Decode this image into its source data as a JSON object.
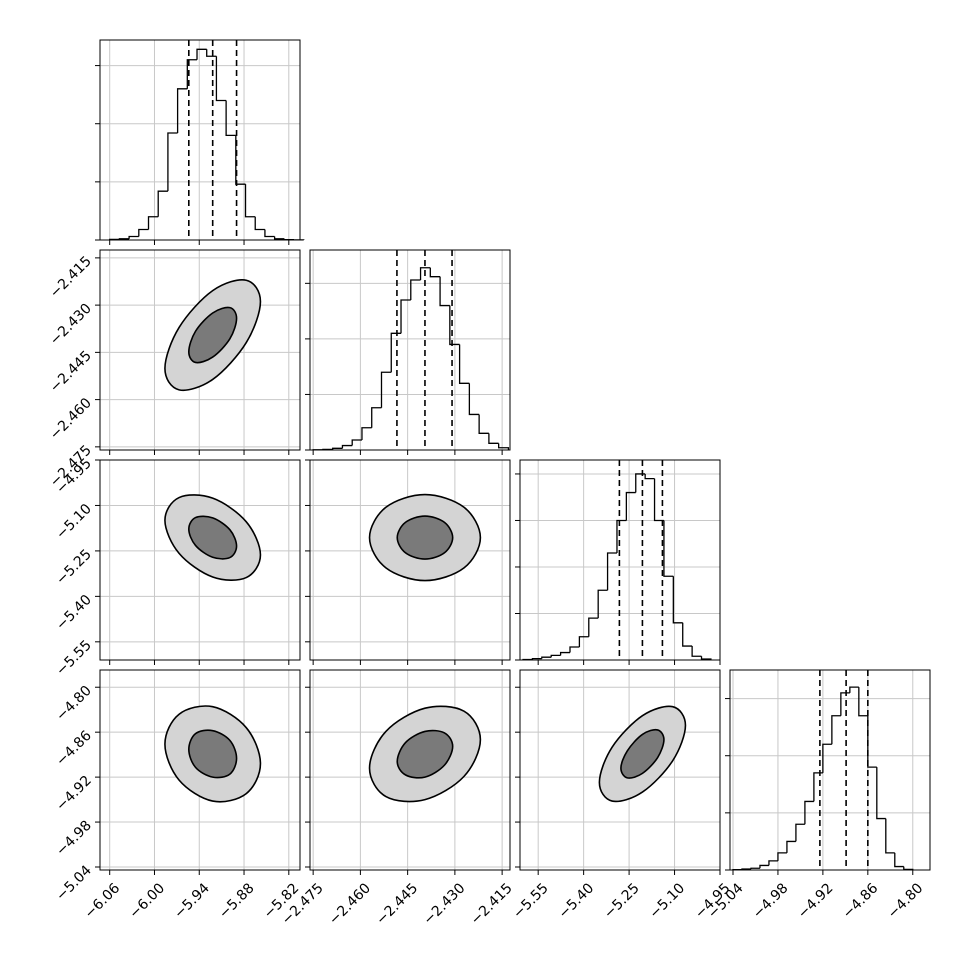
{
  "chart_data": {
    "type": "corner",
    "grid": true,
    "color": "#000000",
    "contour_fills": [
      "#d4d4d4",
      "#7a7a7a"
    ],
    "params": [
      {
        "lim": [
          -6.073,
          -5.805
        ],
        "ticks": [
          {
            "value": -6.06,
            "label": "−6.06"
          },
          {
            "value": -6.0,
            "label": "−6.00"
          },
          {
            "value": -5.94,
            "label": "−5.94"
          },
          {
            "value": -5.88,
            "label": "−5.88"
          },
          {
            "value": -5.82,
            "label": "−5.82"
          }
        ],
        "quantiles": [
          -5.954,
          -5.922,
          -5.89
        ],
        "hist": {
          "bins": [
            -6.06,
            -6.047,
            -6.034,
            -6.021,
            -6.008,
            -5.995,
            -5.982,
            -5.969,
            -5.956,
            -5.943,
            -5.93,
            -5.917,
            -5.904,
            -5.891,
            -5.878,
            -5.865,
            -5.852,
            -5.839,
            -5.826,
            -5.813,
            -5.8
          ],
          "counts": [
            5,
            10,
            30,
            90,
            200,
            420,
            920,
            1300,
            1550,
            1640,
            1580,
            1200,
            900,
            480,
            200,
            90,
            30,
            10,
            3,
            1
          ],
          "ylim": [
            0,
            1720
          ],
          "yticks": [
            0,
            500,
            1000,
            1500
          ]
        }
      },
      {
        "lim": [
          -2.476,
          -2.4125
        ],
        "ticks": [
          {
            "value": -2.475,
            "label": "−2.475"
          },
          {
            "value": -2.46,
            "label": "−2.460"
          },
          {
            "value": -2.445,
            "label": "−2.445"
          },
          {
            "value": -2.43,
            "label": "−2.430"
          },
          {
            "value": -2.415,
            "label": "−2.415"
          }
        ],
        "quantiles": [
          -2.4484,
          -2.4395,
          -2.4309
        ],
        "hist": {
          "bins": [
            -2.475,
            -2.4719,
            -2.4688,
            -2.4657,
            -2.4626,
            -2.4595,
            -2.4564,
            -2.4533,
            -2.4502,
            -2.4471,
            -2.444,
            -2.4409,
            -2.4378,
            -2.4347,
            -2.4316,
            -2.4285,
            -2.4254,
            -2.4223,
            -2.4192,
            -2.4161,
            -2.413
          ],
          "counts": [
            2,
            5,
            15,
            40,
            90,
            200,
            380,
            700,
            1050,
            1350,
            1530,
            1640,
            1560,
            1300,
            950,
            600,
            320,
            150,
            60,
            20
          ],
          "ylim": [
            0,
            1800
          ],
          "yticks": [
            0,
            500,
            1000,
            1500
          ]
        }
      },
      {
        "lim": [
          -5.61,
          -4.95
        ],
        "ticks": [
          {
            "value": -5.55,
            "label": "−5.55"
          },
          {
            "value": -5.4,
            "label": "−5.40"
          },
          {
            "value": -5.25,
            "label": "−5.25"
          },
          {
            "value": -5.1,
            "label": "−5.10"
          },
          {
            "value": -4.95,
            "label": "−4.95"
          }
        ],
        "quantiles": [
          -5.282,
          -5.206,
          -5.14
        ],
        "hist": {
          "bins": [
            -5.6,
            -5.569,
            -5.538,
            -5.507,
            -5.476,
            -5.445,
            -5.414,
            -5.383,
            -5.352,
            -5.321,
            -5.29,
            -5.259,
            -5.228,
            -5.197,
            -5.166,
            -5.135,
            -5.104,
            -5.073,
            -5.042,
            -5.011,
            -4.98
          ],
          "counts": [
            5,
            15,
            30,
            50,
            80,
            140,
            250,
            450,
            750,
            1150,
            1500,
            1800,
            2000,
            1950,
            1500,
            900,
            400,
            150,
            40,
            10
          ],
          "ylim": [
            0,
            2150
          ],
          "yticks": [
            0,
            500,
            1000,
            1500,
            2000
          ]
        }
      },
      {
        "lim": [
          -5.044,
          -4.777
        ],
        "ticks": [
          {
            "value": -5.04,
            "label": "−5.04"
          },
          {
            "value": -4.98,
            "label": "−4.98"
          },
          {
            "value": -4.92,
            "label": "−4.92"
          },
          {
            "value": -4.86,
            "label": "−4.86"
          },
          {
            "value": -4.8,
            "label": "−4.80"
          }
        ],
        "quantiles": [
          -4.924,
          -4.889,
          -4.86
        ],
        "hist": {
          "bins": [
            -5.04,
            -5.028,
            -5.016,
            -5.004,
            -4.992,
            -4.98,
            -4.968,
            -4.956,
            -4.944,
            -4.932,
            -4.92,
            -4.908,
            -4.896,
            -4.884,
            -4.872,
            -4.86,
            -4.848,
            -4.836,
            -4.824,
            -4.812,
            -4.8
          ],
          "counts": [
            3,
            8,
            15,
            40,
            80,
            150,
            250,
            400,
            600,
            850,
            1100,
            1350,
            1550,
            1600,
            1350,
            900,
            450,
            150,
            30,
            5
          ],
          "ylim": [
            0,
            1750
          ],
          "yticks": [
            0,
            500,
            1000,
            1500
          ]
        }
      }
    ],
    "pairs": [
      [
        {
          "contours": [
            {
              "x": [
                -5.858,
                -5.877,
                -5.922,
                -5.967,
                -5.986,
                -5.967,
                -5.922,
                -5.877
              ],
              "y": [
                -2.4289,
                -2.4221,
                -2.4254,
                -2.4371,
                -2.4501,
                -2.4569,
                -2.4536,
                -2.4419
              ]
            },
            {
              "x": [
                -5.89,
                -5.899,
                -5.922,
                -5.945,
                -5.954,
                -5.945,
                -5.922,
                -5.899
              ],
              "y": [
                -2.4342,
                -2.4308,
                -2.4325,
                -2.4383,
                -2.4448,
                -2.4482,
                -2.4465,
                -2.4407
              ]
            }
          ]
        }
      ],
      [
        {
          "contours": [
            {
              "x": [
                -5.858,
                -5.877,
                -5.922,
                -5.967,
                -5.986,
                -5.967,
                -5.922,
                -5.877
              ],
              "y": [
                -5.263,
                -5.154,
                -5.076,
                -5.074,
                -5.149,
                -5.258,
                -5.336,
                -5.338
              ]
            },
            {
              "x": [
                -5.89,
                -5.899,
                -5.922,
                -5.945,
                -5.954,
                -5.945,
                -5.922,
                -5.899
              ],
              "y": [
                -5.234,
                -5.18,
                -5.141,
                -5.14,
                -5.178,
                -5.232,
                -5.271,
                -5.272
              ]
            }
          ]
        },
        {
          "contours": [
            {
              "x": [
                -2.4219,
                -2.4271,
                -2.4395,
                -2.4519,
                -2.4571,
                -2.4519,
                -2.4395,
                -2.4271
              ],
              "y": [
                -5.206,
                -5.106,
                -5.064,
                -5.106,
                -5.206,
                -5.306,
                -5.348,
                -5.306
              ]
            },
            {
              "x": [
                -2.4307,
                -2.4333,
                -2.4395,
                -2.4457,
                -2.4483,
                -2.4457,
                -2.4395,
                -2.4333
              ],
              "y": [
                -5.206,
                -5.156,
                -5.135,
                -5.156,
                -5.206,
                -5.256,
                -5.277,
                -5.256
              ]
            }
          ]
        }
      ],
      [
        {
          "contours": [
            {
              "x": [
                -5.858,
                -5.877,
                -5.922,
                -5.967,
                -5.986,
                -5.967,
                -5.922,
                -5.877
              ],
              "y": [
                -4.902,
                -4.854,
                -4.826,
                -4.836,
                -4.876,
                -4.924,
                -4.952,
                -4.942
              ]
            },
            {
              "x": [
                -5.89,
                -5.899,
                -5.922,
                -5.945,
                -5.954,
                -5.945,
                -5.922,
                -5.899
              ],
              "y": [
                -4.895,
                -4.871,
                -4.858,
                -4.862,
                -4.883,
                -4.907,
                -4.92,
                -4.916
              ]
            }
          ]
        },
        {
          "contours": [
            {
              "x": [
                -2.4219,
                -2.4271,
                -2.4395,
                -2.4519,
                -2.4571,
                -2.4519,
                -2.4395,
                -2.4271
              ],
              "y": [
                -4.87,
                -4.832,
                -4.828,
                -4.859,
                -4.908,
                -4.946,
                -4.95,
                -4.919
              ]
            },
            {
              "x": [
                -2.4307,
                -2.4333,
                -2.4395,
                -2.4457,
                -2.4483,
                -2.4457,
                -2.4395,
                -2.4333
              ],
              "y": [
                -4.879,
                -4.861,
                -4.859,
                -4.874,
                -4.899,
                -4.917,
                -4.92,
                -4.904
              ]
            }
          ]
        },
        {
          "contours": [
            {
              "x": [
                -5.064,
                -5.106,
                -5.206,
                -5.306,
                -5.348,
                -5.306,
                -5.206,
                -5.106
              ],
              "y": [
                -4.851,
                -4.826,
                -4.838,
                -4.88,
                -4.927,
                -4.952,
                -4.94,
                -4.898
              ]
            },
            {
              "x": [
                -5.135,
                -5.156,
                -5.206,
                -5.256,
                -5.277,
                -5.256,
                -5.206,
                -5.156
              ],
              "y": [
                -4.87,
                -4.857,
                -4.863,
                -4.885,
                -4.908,
                -4.921,
                -4.915,
                -4.894
              ]
            }
          ]
        }
      ]
    ]
  }
}
